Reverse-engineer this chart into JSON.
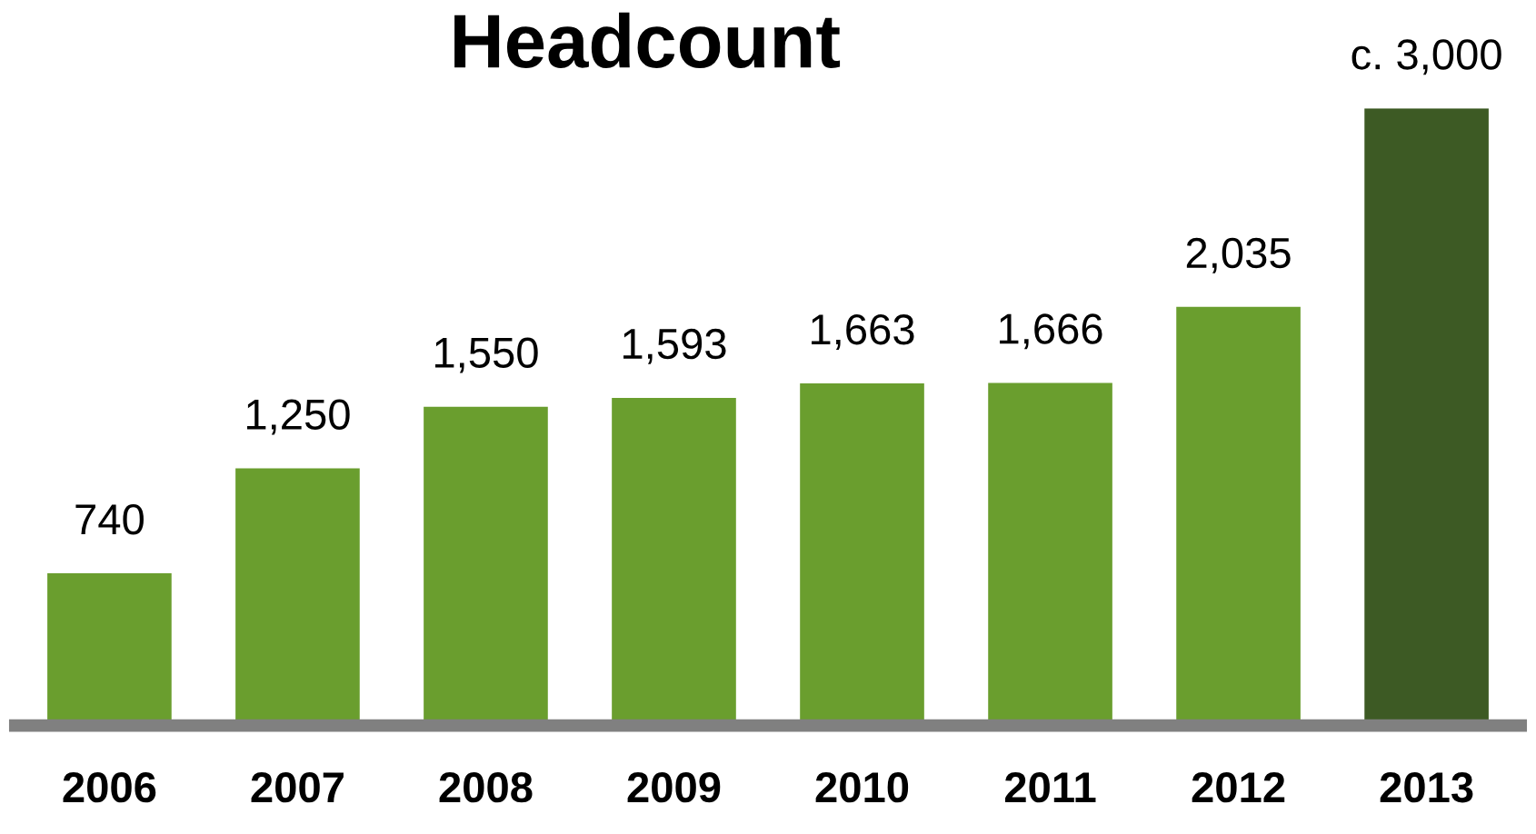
{
  "chart_data": {
    "type": "bar",
    "title": "Headcount",
    "categories": [
      "2006",
      "2007",
      "2008",
      "2009",
      "2010",
      "2011",
      "2012",
      "2013"
    ],
    "values": [
      740,
      1250,
      1550,
      1593,
      1663,
      1666,
      2035,
      3000
    ],
    "value_labels": [
      "740",
      "1,250",
      "1,550",
      "1,593",
      "1,663",
      "1,666",
      "2,035",
      "c. 3,000"
    ],
    "colors": [
      "#6a9e2e",
      "#6a9e2e",
      "#6a9e2e",
      "#6a9e2e",
      "#6a9e2e",
      "#6a9e2e",
      "#6a9e2e",
      "#3d5a24"
    ],
    "tick_labels": "x",
    "grid": false,
    "legend": false
  }
}
